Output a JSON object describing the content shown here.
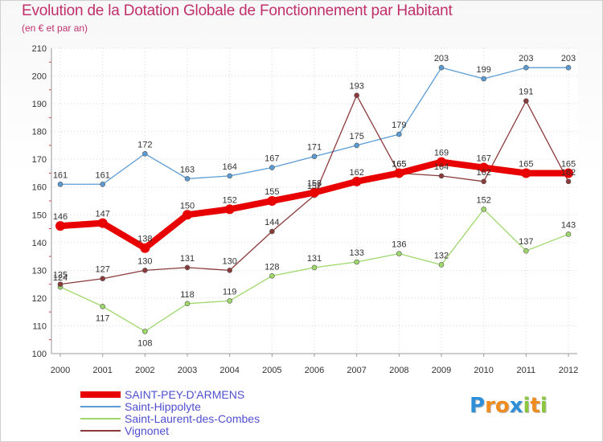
{
  "title": "Evolution de la Dotation Globale de Fonctionnement par Habitant",
  "subtitle": "(en € et par an)",
  "logo": {
    "letters": [
      "P",
      "r",
      "o",
      "x",
      "i",
      "t",
      "i"
    ],
    "colors": [
      "#2e8fd8",
      "#f08c1e",
      "#f08c1e",
      "#2e8fd8",
      "#8cc63f",
      "#f08c1e",
      "#8cc63f"
    ]
  },
  "chart_data": {
    "type": "line",
    "title": "Evolution de la Dotation Globale de Fonctionnement par Habitant",
    "ylabel": "(en € et par an)",
    "xlabel": "",
    "ylim": [
      100,
      210
    ],
    "yticks": [
      100,
      110,
      120,
      130,
      140,
      150,
      160,
      170,
      180,
      190,
      200,
      210
    ],
    "categories": [
      "2000",
      "2001",
      "2002",
      "2003",
      "2004",
      "2005",
      "2006",
      "2007",
      "2008",
      "2009",
      "2010",
      "2011",
      "2012"
    ],
    "grid": true,
    "series": [
      {
        "name": "SAINT-PEY-D'ARMENS",
        "color": "#e80000",
        "values": [
          146,
          147,
          138,
          150,
          152,
          155,
          158,
          162,
          165,
          169,
          167,
          165,
          165
        ]
      },
      {
        "name": "Saint-Hippolyte",
        "color": "#5a9bd4",
        "values": [
          161,
          161,
          172,
          163,
          164,
          167,
          171,
          175,
          179,
          203,
          199,
          203,
          203
        ]
      },
      {
        "name": "Saint-Laurent-des-Combes",
        "color": "#9ed86a",
        "values": [
          124,
          117,
          108,
          118,
          119,
          128,
          131,
          133,
          136,
          132,
          152,
          137,
          143
        ]
      },
      {
        "name": "Vignonet",
        "color": "#8b3a3a",
        "values": [
          125,
          127,
          130,
          131,
          130,
          144,
          157,
          193,
          165,
          164,
          162,
          191,
          162
        ]
      }
    ]
  }
}
